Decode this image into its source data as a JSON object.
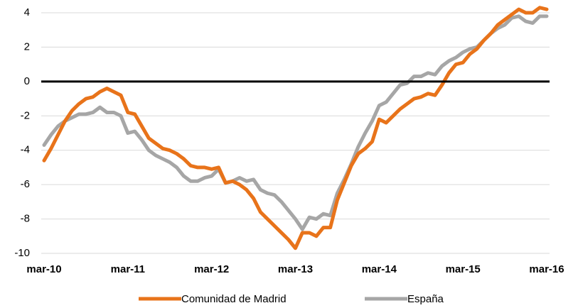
{
  "chart_data": {
    "type": "line",
    "categories": [
      "mar-10",
      null,
      null,
      null,
      null,
      null,
      null,
      null,
      null,
      null,
      null,
      null,
      "mar-11",
      null,
      null,
      null,
      null,
      null,
      null,
      null,
      null,
      null,
      null,
      null,
      "mar-12",
      null,
      null,
      null,
      null,
      null,
      null,
      null,
      null,
      null,
      null,
      null,
      "mar-13",
      null,
      null,
      null,
      null,
      null,
      null,
      null,
      null,
      null,
      null,
      null,
      "mar-14",
      null,
      null,
      null,
      null,
      null,
      null,
      null,
      null,
      null,
      null,
      null,
      "mar-15",
      null,
      null,
      null,
      null,
      null,
      null,
      null,
      null,
      null,
      null,
      null,
      "mar-16"
    ],
    "series": [
      {
        "name": "Comunidad de Madrid",
        "color": "#e8731a",
        "values": [
          -4.6,
          -3.9,
          -3.1,
          -2.3,
          -1.7,
          -1.3,
          -1.0,
          -0.9,
          -0.6,
          -0.4,
          -0.6,
          -0.8,
          -1.8,
          -1.9,
          -2.6,
          -3.3,
          -3.6,
          -3.9,
          -4.0,
          -4.2,
          -4.5,
          -4.9,
          -5.0,
          -5.0,
          -5.1,
          -5.0,
          -5.9,
          -5.8,
          -6.0,
          -6.3,
          -6.8,
          -7.6,
          -8.0,
          -8.4,
          -8.8,
          -9.2,
          -9.7,
          -8.8,
          -8.8,
          -9.0,
          -8.5,
          -8.5,
          -6.9,
          -5.9,
          -4.9,
          -4.2,
          -3.9,
          -3.5,
          -2.2,
          -2.4,
          -2.0,
          -1.6,
          -1.3,
          -1.0,
          -0.9,
          -0.7,
          -0.8,
          -0.2,
          0.5,
          1.0,
          1.1,
          1.6,
          1.9,
          2.4,
          2.8,
          3.3,
          3.6,
          3.9,
          4.2,
          4.0,
          4.0,
          4.3,
          4.2
        ]
      },
      {
        "name": "España",
        "color": "#a6a6a6",
        "values": [
          -3.7,
          -3.1,
          -2.6,
          -2.3,
          -2.1,
          -1.9,
          -1.9,
          -1.8,
          -1.5,
          -1.8,
          -1.8,
          -2.0,
          -3.0,
          -2.9,
          -3.4,
          -4.0,
          -4.3,
          -4.5,
          -4.7,
          -5.0,
          -5.5,
          -5.8,
          -5.8,
          -5.6,
          -5.5,
          -5.1,
          -5.9,
          -5.8,
          -5.6,
          -5.8,
          -5.7,
          -6.3,
          -6.5,
          -6.6,
          -7.0,
          -7.5,
          -8.0,
          -8.6,
          -7.9,
          -8.0,
          -7.7,
          -7.8,
          -6.5,
          -5.7,
          -4.8,
          -3.8,
          -3.0,
          -2.3,
          -1.4,
          -1.2,
          -0.7,
          -0.2,
          -0.1,
          0.3,
          0.3,
          0.5,
          0.4,
          0.9,
          1.2,
          1.4,
          1.7,
          1.9,
          2.0,
          2.4,
          2.8,
          3.1,
          3.3,
          3.7,
          3.8,
          3.5,
          3.4,
          3.8,
          3.8
        ]
      }
    ],
    "ylim": [
      -10,
      4
    ],
    "yticks": [
      -10,
      -8,
      -6,
      -4,
      -2,
      0,
      2,
      4
    ],
    "grid": true
  }
}
